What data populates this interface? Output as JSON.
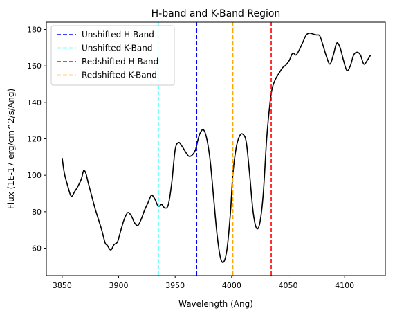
{
  "chart_data": {
    "type": "line",
    "title": "H-band and K-Band Region",
    "xlabel": "Wavelength (Ang)",
    "ylabel": "Flux (1E-17 erg/cm^2/s/Ang)",
    "xlim": [
      3836,
      4136
    ],
    "ylim": [
      45,
      184
    ],
    "xticks": [
      3850,
      3900,
      3950,
      4000,
      4050,
      4100
    ],
    "yticks": [
      60,
      80,
      100,
      120,
      140,
      160,
      180
    ],
    "grid": false,
    "legend_position": "upper-left",
    "series": [
      {
        "color": "#000000",
        "x": [
          3850,
          3852,
          3855,
          3858,
          3861,
          3864,
          3867,
          3869,
          3871,
          3873,
          3876,
          3879,
          3882,
          3885,
          3888,
          3890,
          3893,
          3896,
          3899,
          3902,
          3905,
          3908,
          3911,
          3914,
          3917,
          3920,
          3923,
          3926,
          3929,
          3932,
          3935,
          3938,
          3941,
          3944,
          3947,
          3950,
          3953,
          3956,
          3959,
          3962,
          3965,
          3968,
          3970,
          3972,
          3975,
          3978,
          3981,
          3984,
          3987,
          3990,
          3993,
          3996,
          3999,
          4001,
          4004,
          4007,
          4010,
          4013,
          4016,
          4019,
          4022,
          4025,
          4028,
          4031,
          4034,
          4036,
          4039,
          4042,
          4045,
          4048,
          4051,
          4054,
          4057,
          4060,
          4063,
          4066,
          4069,
          4072,
          4075,
          4078,
          4081,
          4084,
          4087,
          4090,
          4093,
          4096,
          4099,
          4102,
          4105,
          4108,
          4111,
          4114,
          4117,
          4120,
          4123
        ],
        "values": [
          109.5,
          101,
          94,
          88.5,
          91,
          94,
          98,
          102.5,
          101,
          96,
          89,
          82,
          76,
          70,
          63,
          61.5,
          59,
          62,
          63.5,
          70,
          76,
          79.5,
          78,
          74,
          72.5,
          76,
          81,
          85,
          89,
          87,
          83,
          84,
          82,
          84,
          96,
          114,
          118,
          116,
          113,
          110.5,
          111,
          114,
          119,
          123,
          125,
          120,
          108,
          88,
          68,
          55,
          52.5,
          60,
          80,
          100,
          115,
          121.5,
          122.5,
          118,
          100,
          80,
          71,
          74,
          90,
          120,
          140,
          148,
          153,
          156,
          159,
          160.5,
          163,
          167,
          166,
          169,
          173,
          177,
          178,
          177.5,
          177,
          176.5,
          171,
          165,
          161,
          166,
          172.5,
          170,
          163,
          157.5,
          160,
          166,
          167.5,
          166,
          161,
          163,
          166
        ]
      }
    ],
    "vlines": [
      {
        "name": "Unshifted H-Band",
        "x": 3969,
        "color": "#0000ff"
      },
      {
        "name": "Unshifted K-Band",
        "x": 3935,
        "color": "#00ffff"
      },
      {
        "name": "Redshifted H-Band",
        "x": 4035,
        "color": "#ff0000"
      },
      {
        "name": "Redshifted K-Band",
        "x": 4001,
        "color": "#ffa500"
      }
    ]
  }
}
